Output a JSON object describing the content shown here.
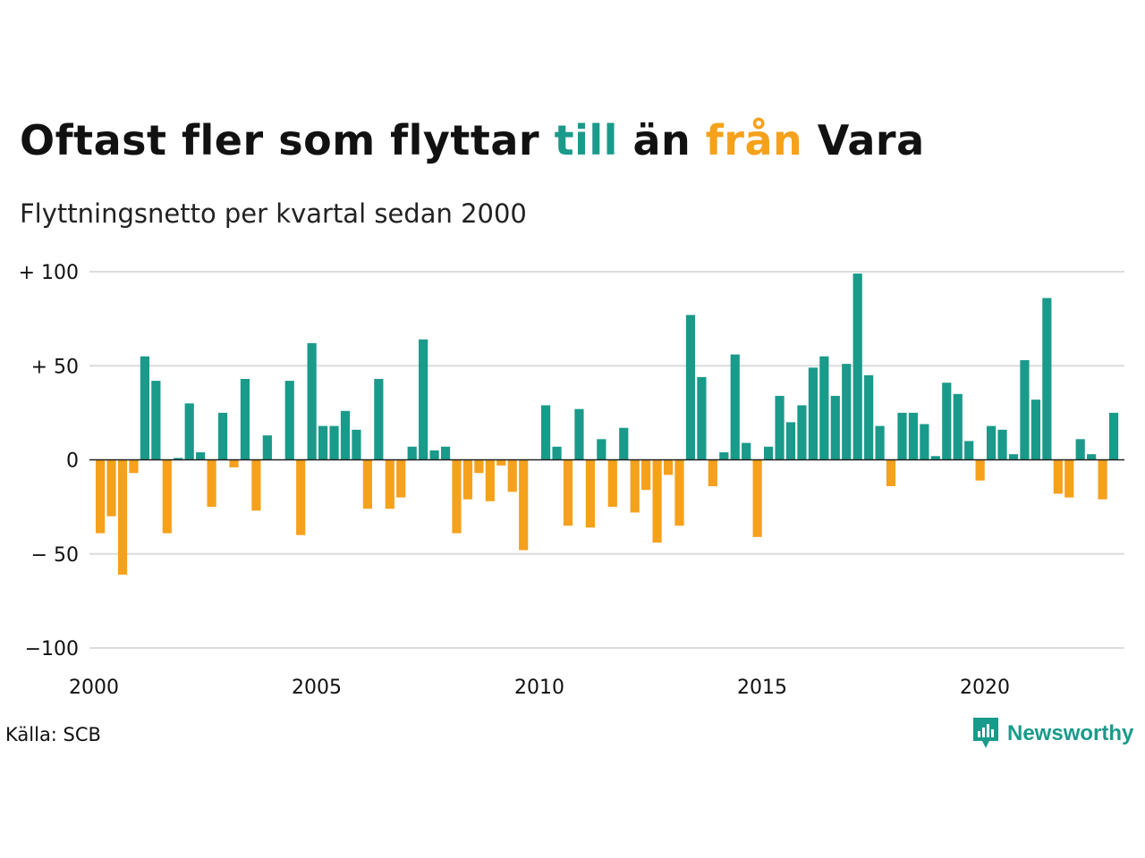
{
  "header": {
    "title_part1": "Oftast fler som flyttar",
    "title_up": "till",
    "title_part2": "än",
    "title_down": "från",
    "title_part3": "Vara",
    "subtitle": "Flyttningsnetto per kvartal sedan 2000"
  },
  "footer": {
    "source": "Källa: SCB",
    "brand": "Newsworthy",
    "brand_icon": "bar-chart-speech-icon"
  },
  "colors": {
    "positive": "#1a9a8a",
    "negative": "#f5a11c",
    "grid": "#dcdcdc",
    "zero_line": "#222222"
  },
  "chart_data": {
    "type": "bar",
    "title": "Oftast fler som flyttar till än från Vara",
    "subtitle": "Flyttningsnetto per kvartal sedan 2000",
    "x_unit": "quarter",
    "start_year": 2000,
    "x_ticks": [
      "2000",
      "2005",
      "2010",
      "2015",
      "2020"
    ],
    "y_ticks": [
      {
        "value": 100,
        "label": "+ 100"
      },
      {
        "value": 50,
        "label": "+  50"
      },
      {
        "value": 0,
        "label": "0"
      },
      {
        "value": -50,
        "label": "− 50"
      },
      {
        "value": -100,
        "label": "−100"
      }
    ],
    "ylim": [
      -100,
      100
    ],
    "grid": true,
    "values": [
      -39,
      -30,
      -61,
      -7,
      55,
      42,
      -39,
      1,
      30,
      4,
      -25,
      25,
      -4,
      43,
      -27,
      13,
      0,
      42,
      -40,
      62,
      18,
      18,
      26,
      16,
      -26,
      43,
      -26,
      -20,
      7,
      64,
      5,
      7,
      -39,
      -21,
      -7,
      -22,
      -3,
      -17,
      -48,
      0,
      29,
      7,
      -35,
      27,
      -36,
      11,
      -25,
      17,
      -28,
      -16,
      -44,
      -8,
      -35,
      77,
      44,
      -14,
      4,
      56,
      9,
      -41,
      7,
      34,
      20,
      29,
      49,
      55,
      34,
      51,
      99,
      45,
      18,
      -14,
      25,
      25,
      19,
      2,
      41,
      35,
      10,
      -11,
      18,
      16,
      3,
      53,
      32,
      86,
      -18,
      -20,
      11,
      3,
      -21,
      25
    ]
  }
}
